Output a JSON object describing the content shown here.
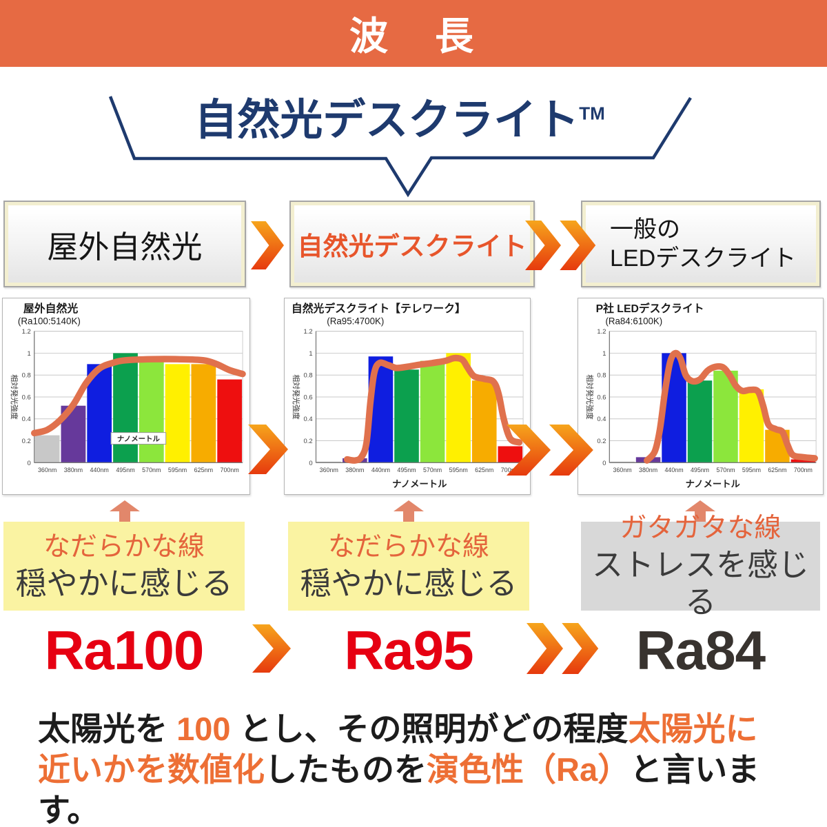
{
  "banner": {
    "title": "波　長"
  },
  "funnel": {
    "title": "自然光デスクライト",
    "tm": "TM"
  },
  "flow": {
    "box1": "屋外自然光",
    "box2": "自然光デスクライト",
    "box3_line1": "一般の",
    "box3_line2": "LEDデスクライト"
  },
  "chart_data": [
    {
      "type": "bar+line",
      "title": "屋外自然光",
      "subtitle": "(Ra100:5140K)",
      "ylabel": "相対発光強度",
      "xlabel": "ナノメートル",
      "xlabel_placement": "inner-box",
      "categories": [
        "360nm",
        "380nm",
        "440nm",
        "495nm",
        "570nm",
        "595nm",
        "625nm",
        "700nm"
      ],
      "values": [
        0.25,
        0.52,
        0.9,
        1.0,
        0.97,
        0.9,
        0.9,
        0.76
      ],
      "bar_colors": [
        "#c8c8c8",
        "#66399b",
        "#0f1ee0",
        "#0ca04e",
        "#8ce63c",
        "#fff000",
        "#f7ac00",
        "#ee0f0f"
      ],
      "ylim": [
        0,
        1.2
      ],
      "yticks": [
        0,
        0.2,
        0.4,
        0.6,
        0.8,
        1,
        1.2
      ],
      "grid": true,
      "curve_color": "#e0714d",
      "curve": [
        [
          0,
          0.27
        ],
        [
          0.5,
          0.3
        ],
        [
          1,
          0.39
        ],
        [
          1.5,
          0.53
        ],
        [
          2,
          0.73
        ],
        [
          2.5,
          0.86
        ],
        [
          3,
          0.91
        ],
        [
          3.5,
          0.935
        ],
        [
          4.5,
          0.945
        ],
        [
          5.5,
          0.945
        ],
        [
          6.5,
          0.935
        ],
        [
          7,
          0.9
        ],
        [
          7.5,
          0.845
        ],
        [
          8,
          0.81
        ]
      ]
    },
    {
      "type": "bar+line",
      "title": "自然光デスクライト【テレワーク】",
      "subtitle": "(Ra95:4700K)",
      "ylabel": "相対発光強度",
      "xlabel": "ナノメートル",
      "xlabel_placement": "below-axis",
      "categories": [
        "360nm",
        "380nm",
        "440nm",
        "495nm",
        "570nm",
        "595nm",
        "625nm",
        "700nm"
      ],
      "values": [
        0.01,
        0.04,
        0.97,
        0.85,
        0.93,
        1.0,
        0.75,
        0.15
      ],
      "bar_colors": [
        "#c8c8c8",
        "#66399b",
        "#0f1ee0",
        "#0ca04e",
        "#8ce63c",
        "#fff000",
        "#f7ac00",
        "#ee0f0f"
      ],
      "ylim": [
        0,
        1.2
      ],
      "yticks": [
        0,
        0.2,
        0.4,
        0.6,
        0.8,
        1,
        1.2
      ],
      "grid": true,
      "curve_color": "#e0714d",
      "curve": [
        [
          1.2,
          0.03
        ],
        [
          1.5,
          0.02
        ],
        [
          1.75,
          0.05
        ],
        [
          1.95,
          0.18
        ],
        [
          2.1,
          0.55
        ],
        [
          2.25,
          0.82
        ],
        [
          2.45,
          0.91
        ],
        [
          2.8,
          0.89
        ],
        [
          3.1,
          0.865
        ],
        [
          3.5,
          0.875
        ],
        [
          4,
          0.895
        ],
        [
          4.5,
          0.91
        ],
        [
          5,
          0.93
        ],
        [
          5.35,
          0.955
        ],
        [
          5.65,
          0.94
        ],
        [
          5.85,
          0.87
        ],
        [
          6.1,
          0.79
        ],
        [
          6.5,
          0.765
        ],
        [
          6.85,
          0.74
        ],
        [
          7.05,
          0.63
        ],
        [
          7.25,
          0.4
        ],
        [
          7.5,
          0.22
        ],
        [
          7.85,
          0.185
        ]
      ]
    },
    {
      "type": "bar+line",
      "title": "P社 LEDデスクライト",
      "subtitle": "(Ra84:6100K)",
      "ylabel": "相対発光強度",
      "xlabel": "ナノメートル",
      "xlabel_placement": "below-axis",
      "categories": [
        "360nm",
        "380nm",
        "440nm",
        "495nm",
        "570nm",
        "595nm",
        "625nm",
        "700nm"
      ],
      "values": [
        0.01,
        0.05,
        1.0,
        0.75,
        0.84,
        0.67,
        0.3,
        0.03
      ],
      "bar_colors": [
        "#c8c8c8",
        "#66399b",
        "#0f1ee0",
        "#0ca04e",
        "#8ce63c",
        "#fff000",
        "#f7ac00",
        "#ee0f0f"
      ],
      "ylim": [
        0,
        1.2
      ],
      "yticks": [
        0,
        0.2,
        0.4,
        0.6,
        0.8,
        1,
        1.2
      ],
      "grid": true,
      "curve_color": "#e0714d",
      "curve": [
        [
          1.45,
          0.02
        ],
        [
          1.75,
          0.1
        ],
        [
          1.95,
          0.3
        ],
        [
          2.15,
          0.65
        ],
        [
          2.35,
          0.92
        ],
        [
          2.55,
          1.0
        ],
        [
          2.75,
          0.95
        ],
        [
          2.95,
          0.8
        ],
        [
          3.2,
          0.745
        ],
        [
          3.5,
          0.76
        ],
        [
          3.8,
          0.84
        ],
        [
          4.1,
          0.875
        ],
        [
          4.4,
          0.87
        ],
        [
          4.65,
          0.8
        ],
        [
          4.9,
          0.7
        ],
        [
          5.15,
          0.655
        ],
        [
          5.45,
          0.665
        ],
        [
          5.75,
          0.65
        ],
        [
          5.95,
          0.52
        ],
        [
          6.15,
          0.35
        ],
        [
          6.45,
          0.305
        ],
        [
          6.7,
          0.28
        ],
        [
          6.9,
          0.16
        ],
        [
          7.1,
          0.07
        ],
        [
          7.5,
          0.05
        ],
        [
          7.95,
          0.04
        ]
      ]
    }
  ],
  "impressions": [
    {
      "line1": "なだらかな線",
      "line2": "穏やかに感じる"
    },
    {
      "line1": "なだらかな線",
      "line2": "穏やかに感じる"
    },
    {
      "line1": "ガタガタな線",
      "line2": "ストレスを感じる"
    }
  ],
  "ra": {
    "r1": "Ra100",
    "r2": "Ra95",
    "r3": "Ra84"
  },
  "footer": {
    "line1": [
      {
        "t": "太陽光を ",
        "c": "dark"
      },
      {
        "t": "100",
        "c": "orange"
      },
      {
        "t": " とし、その照明がどの程度",
        "c": "dark"
      },
      {
        "t": "太陽光に",
        "c": "orange"
      }
    ],
    "line2": [
      {
        "t": "近いかを数値化",
        "c": "orange"
      },
      {
        "t": "したものを",
        "c": "dark"
      },
      {
        "t": "演色性（Ra）",
        "c": "orange"
      },
      {
        "t": "と言います。",
        "c": "dark"
      }
    ]
  },
  "colors": {
    "banner_bg": "#e66a43",
    "navy": "#1e3a6e",
    "accent_orange": "#ed6f35",
    "ra_red": "#e60012",
    "ra_dark": "#38332f",
    "arrow_salmon": "#e2876b",
    "curve": "#e0714d",
    "chevron_top": "#f6a51c",
    "chevron_mid": "#ee6a14",
    "chevron_bottom": "#e63a0e"
  }
}
